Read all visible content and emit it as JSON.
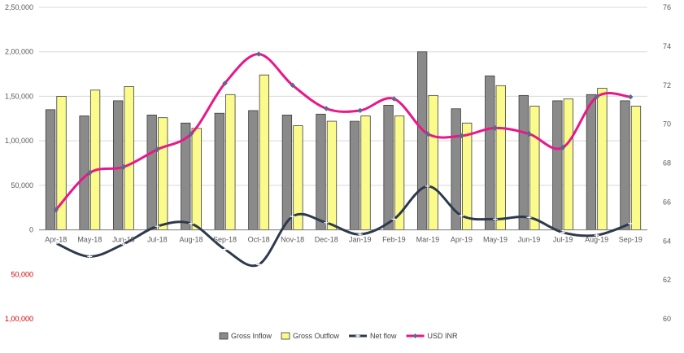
{
  "chart_data": {
    "type": "bar",
    "categories": [
      "Apr-18",
      "May-18",
      "Jun-18",
      "Jul-18",
      "Aug-18",
      "Sep-18",
      "Oct-18",
      "Nov-18",
      "Dec-18",
      "Jan-19",
      "Feb-19",
      "Mar-19",
      "Apr-19",
      "May-19",
      "Jun-19",
      "Jul-19",
      "Aug-19",
      "Sep-19"
    ],
    "series": [
      {
        "name": "Gross Inflow",
        "kind": "bar",
        "axis": "left",
        "color": "#8a8a8a",
        "values": [
          135000,
          128000,
          145000,
          129000,
          120000,
          131000,
          134000,
          129000,
          130000,
          122000,
          140000,
          200000,
          136000,
          173000,
          151000,
          145000,
          152000,
          145000
        ]
      },
      {
        "name": "Gross Outflow",
        "kind": "bar",
        "axis": "left",
        "color": "#fbfb8c",
        "values": [
          150000,
          157000,
          161000,
          126000,
          114000,
          152000,
          174000,
          117000,
          122000,
          128000,
          128000,
          151000,
          120000,
          162000,
          139000,
          147000,
          159000,
          139000
        ]
      },
      {
        "name": "Net flow",
        "kind": "line",
        "axis": "left",
        "color": "#2e3a4c",
        "values": [
          -15000,
          -30000,
          -16000,
          4000,
          7000,
          -22000,
          -39000,
          15000,
          8000,
          -5000,
          12000,
          49000,
          16000,
          12000,
          14000,
          -3000,
          -6000,
          7000
        ]
      },
      {
        "name": "USD INR",
        "kind": "line",
        "axis": "right",
        "color": "#e8178a",
        "values": [
          65.6,
          67.5,
          67.8,
          68.7,
          69.5,
          72.1,
          73.6,
          72.0,
          70.8,
          70.7,
          71.3,
          69.5,
          69.4,
          69.8,
          69.5,
          68.8,
          71.4,
          71.4
        ]
      }
    ],
    "y_left": {
      "ticks": [
        250000,
        200000,
        150000,
        100000,
        50000,
        0,
        -50000,
        -100000
      ],
      "tick_labels": [
        "2,50,000",
        "2,00,000",
        "1,50,000",
        "1,00,000",
        "50,000",
        "0",
        "50,000",
        "1,00,000"
      ],
      "negative_color": "#cc0000",
      "ylim": [
        -100000,
        250000
      ]
    },
    "y_right": {
      "ticks": [
        76,
        74,
        72,
        70,
        68,
        66,
        64,
        62,
        60
      ],
      "tick_labels": [
        "76",
        "74",
        "72",
        "70",
        "68",
        "66",
        "64",
        "62",
        "60"
      ],
      "ylim": [
        60,
        76
      ]
    },
    "grid": true,
    "legend_position": "bottom"
  }
}
